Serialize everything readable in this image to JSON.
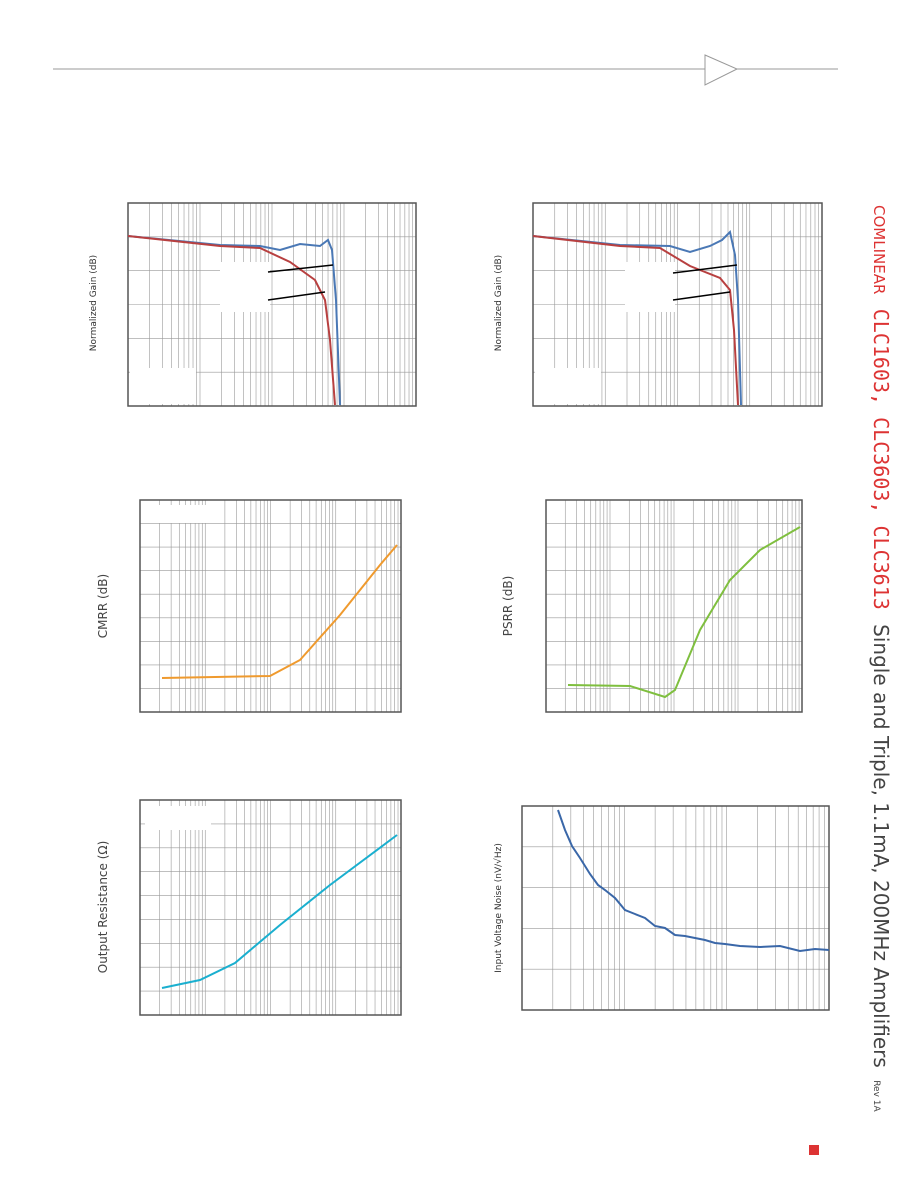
{
  "header": {
    "brand": "Comlinear",
    "parts": "CLC1603, CLC3603, CLC3613",
    "title": "Single and Triple, 1.1mA, 200MHz Amplifiers",
    "rev": "Rev 1A"
  },
  "plots": [
    {
      "y_label": "Normalized Gain (dB)"
    },
    {
      "y_label": "Normalized Gain (dB)"
    },
    {
      "y_label": "CMRR (dB)"
    },
    {
      "y_label": "PSRR (dB)"
    },
    {
      "y_label": "Output Resistance (Ω)"
    },
    {
      "y_label": "Input Voltage Noise (nV/√Hz)"
    }
  ]
}
